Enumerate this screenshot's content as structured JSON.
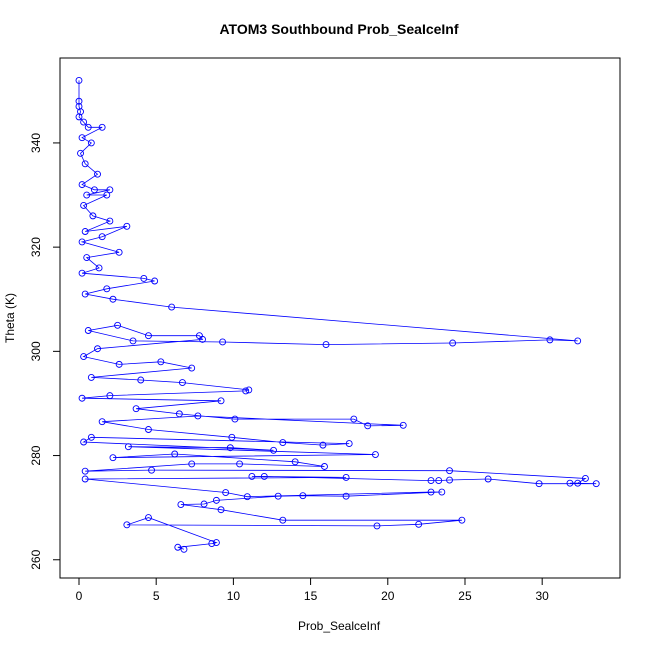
{
  "chart_data": {
    "type": "line",
    "markers": true,
    "color": "#0000ff",
    "title": "ATOM3 Southbound Prob_SeaIceInf",
    "x_label": "Prob_SealceInf",
    "y_label": "Theta (K)",
    "xlim": [
      -1.23,
      35.04
    ],
    "ylim": [
      256.5,
      356.3
    ],
    "xticks": [
      0,
      5,
      10,
      15,
      20,
      25,
      30
    ],
    "yticks": [
      260,
      280,
      300,
      320,
      340
    ],
    "x": [
      0,
      0,
      0,
      0.1,
      0,
      0.3,
      0.6,
      1.5,
      0.2,
      0.8,
      0.1,
      0.4,
      1.2,
      0.2,
      1,
      2,
      0.5,
      1.8,
      0.3,
      0.9,
      2,
      0.4,
      3.1,
      1.5,
      0.2,
      2.6,
      0.5,
      1.3,
      0.2,
      4.2,
      4.9,
      1.8,
      0.4,
      2.2,
      6,
      32.3,
      30.5,
      24.2,
      16,
      9.3,
      3.5,
      0.6,
      2.5,
      4.5,
      7.8,
      8,
      1.2,
      0.3,
      2.6,
      5.3,
      7.3,
      0.8,
      4,
      6.7,
      11,
      10.8,
      2,
      0.2,
      9.2,
      3.7,
      6.5,
      10.1,
      17.8,
      18.7,
      21,
      7.7,
      1.5,
      4.5,
      9.9,
      13.2,
      15.8,
      17.5,
      0.8,
      0.3,
      12.6,
      9.8,
      3.2,
      19.2,
      2.2,
      6.2,
      14,
      15.9,
      10.4,
      7.3,
      0.4,
      4.7,
      24,
      32.8,
      32.3,
      31.8,
      33.5,
      29.8,
      26.5,
      24,
      23.3,
      22.8,
      12,
      11.2,
      17.3,
      0.4,
      9.5,
      10.9,
      22.8,
      23.5,
      17.3,
      14.5,
      12.9,
      8.9,
      8.1,
      6.6,
      9.2,
      13.2,
      24.8,
      22,
      19.3,
      3.1,
      4.5,
      8.9,
      8.6,
      6.4,
      6.8
    ],
    "values": [
      352,
      348,
      347,
      346,
      345,
      344,
      343,
      343,
      341,
      340,
      338,
      336,
      334,
      332,
      331,
      331,
      330,
      330,
      328,
      326,
      325,
      323,
      324,
      322,
      321,
      319,
      318,
      316,
      315,
      314,
      313.5,
      312,
      311,
      310,
      308.5,
      302,
      302.2,
      301.6,
      301.3,
      301.8,
      302,
      304,
      305,
      303,
      303,
      302.3,
      300.5,
      299,
      297.5,
      298,
      296.8,
      295,
      294.5,
      294,
      292.6,
      292.4,
      291.5,
      291,
      290.5,
      289,
      288,
      287,
      287,
      285.7,
      285.8,
      287.6,
      286.5,
      285,
      283.5,
      282.5,
      282,
      282.3,
      283.5,
      282.6,
      281,
      281.5,
      281.7,
      280.2,
      279.6,
      280.3,
      278.8,
      277.9,
      278.4,
      278.4,
      277,
      277.2,
      277.1,
      275.6,
      274.7,
      274.7,
      274.6,
      274.6,
      275.5,
      275.3,
      275.2,
      275.2,
      276,
      276,
      275.8,
      275.5,
      272.9,
      272.1,
      273,
      273,
      272.2,
      272.3,
      272.2,
      271.4,
      270.7,
      270.6,
      269.6,
      267.6,
      267.6,
      266.8,
      266.5,
      266.7,
      268.1,
      263.3,
      263.1,
      262.4,
      262
    ]
  }
}
